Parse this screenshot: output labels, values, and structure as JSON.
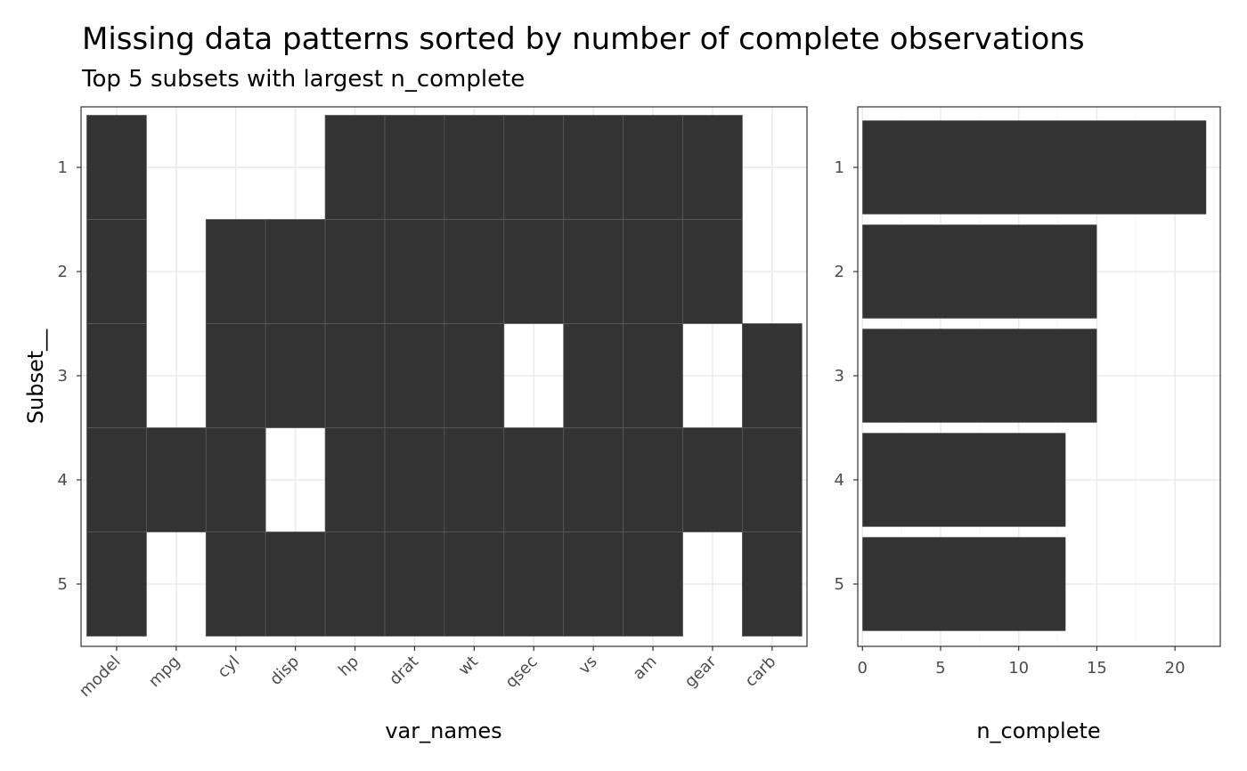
{
  "title": "Missing data patterns sorted by number of complete observations",
  "subtitle": "Top 5 subsets with largest n_complete",
  "colors": {
    "tile_fill": "#333333",
    "tile_border": "#5a5a5a",
    "bar_fill": "#333333",
    "grid_major": "#ebebeb",
    "grid_minor": "#f5f5f5",
    "panel_border": "#333333",
    "tick_text": "#4d4d4d"
  },
  "chart_data": [
    {
      "type": "heatmap",
      "xlabel": "var_names",
      "ylabel": "Subset__",
      "x_categories": [
        "model",
        "mpg",
        "cyl",
        "disp",
        "hp",
        "drat",
        "wt",
        "qsec",
        "vs",
        "am",
        "gear",
        "carb"
      ],
      "y_categories": [
        "1",
        "2",
        "3",
        "4",
        "5"
      ],
      "present_matrix": [
        [
          1,
          0,
          0,
          0,
          1,
          1,
          1,
          1,
          1,
          1,
          1,
          0
        ],
        [
          1,
          0,
          1,
          1,
          1,
          1,
          1,
          1,
          1,
          1,
          1,
          0
        ],
        [
          1,
          0,
          1,
          1,
          1,
          1,
          1,
          0,
          1,
          1,
          0,
          1
        ],
        [
          1,
          1,
          1,
          0,
          1,
          1,
          1,
          1,
          1,
          1,
          1,
          1
        ],
        [
          1,
          0,
          1,
          1,
          1,
          1,
          1,
          1,
          1,
          1,
          0,
          1
        ]
      ],
      "grid": true
    },
    {
      "type": "bar",
      "orientation": "horizontal",
      "xlabel": "n_complete",
      "ylabel": "",
      "categories": [
        "1",
        "2",
        "3",
        "4",
        "5"
      ],
      "values": [
        22,
        15,
        15,
        13,
        13
      ],
      "xlim": [
        -0.3,
        22.9
      ],
      "xticks": [
        "0",
        "5",
        "10",
        "15",
        "20"
      ],
      "grid": true
    }
  ]
}
